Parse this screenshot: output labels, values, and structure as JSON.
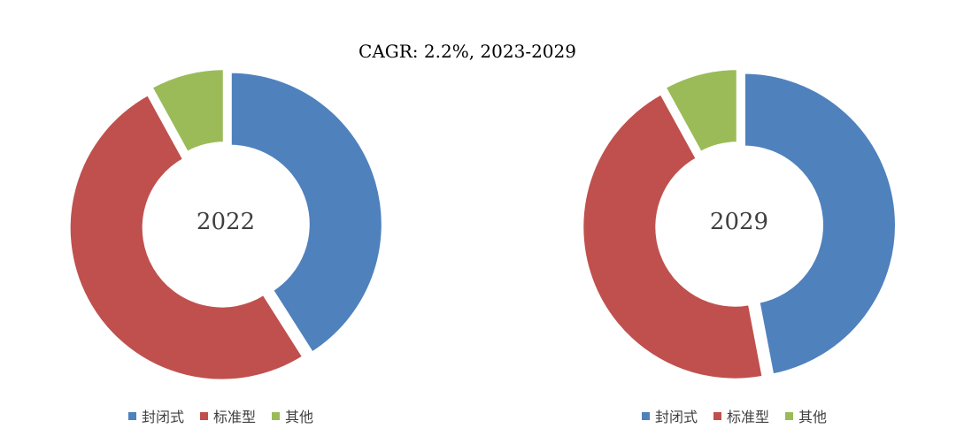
{
  "title": "CAGR: 2.2%, 2023-2029",
  "legend": [
    {
      "label": "封闭式",
      "color": "#4F81BD"
    },
    {
      "label": "标准型",
      "color": "#C0504D"
    },
    {
      "label": "其他",
      "color": "#9BBB59"
    }
  ],
  "chart_data": [
    {
      "type": "pie",
      "center_label": "2022",
      "categories": [
        "封闭式",
        "标准型",
        "其他"
      ],
      "values": [
        41,
        51,
        8
      ],
      "colors": [
        "#4F81BD",
        "#C0504D",
        "#9BBB59"
      ]
    },
    {
      "type": "pie",
      "center_label": "2029",
      "categories": [
        "封闭式",
        "标准型",
        "其他"
      ],
      "values": [
        47,
        45,
        8
      ],
      "colors": [
        "#4F81BD",
        "#C0504D",
        "#9BBB59"
      ]
    }
  ]
}
